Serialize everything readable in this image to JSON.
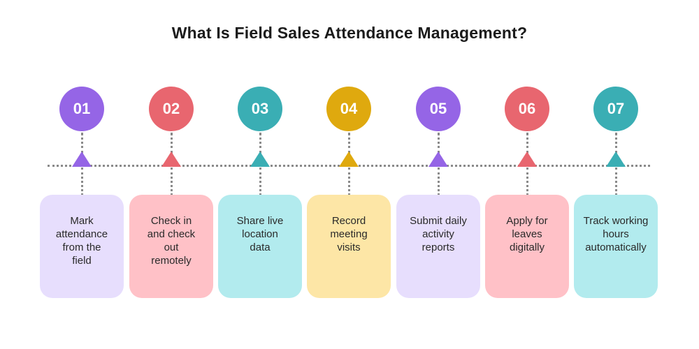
{
  "title": "What Is Field Sales Attendance Management?",
  "colors": {
    "purple": "#9565e6",
    "red": "#e8666f",
    "teal": "#3aaeb4",
    "gold": "#dfa90e",
    "light_purple": "#e7defd",
    "light_red": "#ffc1c7",
    "light_teal": "#b2ebee",
    "light_gold": "#fde6a6"
  },
  "steps": [
    {
      "number": "01",
      "lines": [
        "Mark",
        "attendance",
        "from the",
        "field"
      ],
      "color": "#9565e6",
      "card_color": "#e7defd"
    },
    {
      "number": "02",
      "lines": [
        "Check in",
        "and check",
        "out",
        "remotely"
      ],
      "color": "#e8666f",
      "card_color": "#ffc1c7"
    },
    {
      "number": "03",
      "lines": [
        "Share live",
        "location",
        "data"
      ],
      "color": "#3aaeb4",
      "card_color": "#b2ebee"
    },
    {
      "number": "04",
      "lines": [
        "Record",
        "meeting",
        "visits"
      ],
      "color": "#dfa90e",
      "card_color": "#fde6a6"
    },
    {
      "number": "05",
      "lines": [
        "Submit daily",
        "activity",
        "reports"
      ],
      "color": "#9565e6",
      "card_color": "#e7defd"
    },
    {
      "number": "06",
      "lines": [
        "Apply for",
        "leaves",
        "digitally"
      ],
      "color": "#e8666f",
      "card_color": "#ffc1c7"
    },
    {
      "number": "07",
      "lines": [
        "Track working",
        "hours",
        "automatically"
      ],
      "color": "#3aaeb4",
      "card_color": "#b2ebee"
    }
  ]
}
